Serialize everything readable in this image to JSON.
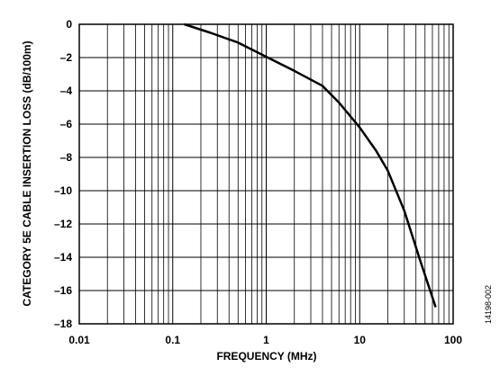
{
  "chart_data": {
    "type": "line",
    "x_label": "FREQUENCY (MHz)",
    "y_label": "CATEGORY 5E CABLE INSERTION LOSS (dB/100m)",
    "figure_id": "14198-002",
    "x_log": true,
    "grid": true,
    "minor_grid": true,
    "xlim": [
      0.01,
      100
    ],
    "xticks": [
      0.01,
      0.1,
      1,
      10,
      100
    ],
    "ylim": [
      -18,
      0
    ],
    "yticks": [
      {
        "value": -18,
        "label": "–18"
      },
      {
        "value": -16,
        "label": "–16"
      },
      {
        "value": -14,
        "label": "–14"
      },
      {
        "value": -12,
        "label": "–12"
      },
      {
        "value": -10,
        "label": "–10"
      },
      {
        "value": -8,
        "label": "–8"
      },
      {
        "value": -6,
        "label": "–6"
      },
      {
        "value": -4,
        "label": "–4"
      },
      {
        "value": -2,
        "label": "–2"
      },
      0
    ],
    "series": [
      {
        "color": "#000000",
        "x": [
          0.133,
          0.25,
          0.5,
          1,
          2,
          4,
          6,
          10,
          15,
          20,
          30,
          45,
          65
        ],
        "values": [
          0,
          -0.5,
          -1.1,
          -1.95,
          -2.8,
          -3.7,
          -4.7,
          -6.2,
          -7.6,
          -8.8,
          -11.2,
          -14.3,
          -17.0
        ]
      }
    ]
  }
}
